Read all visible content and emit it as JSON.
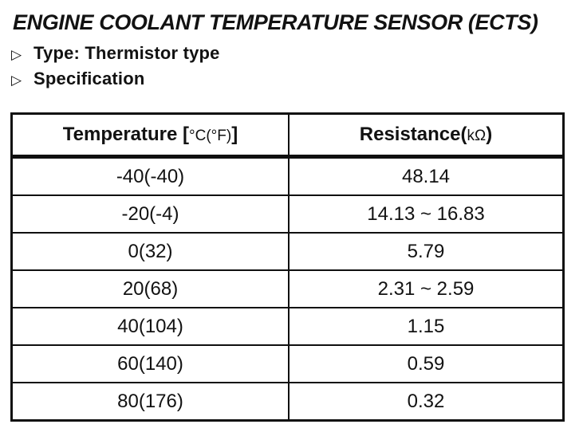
{
  "document": {
    "title": "ENGINE COOLANT TEMPERATURE SENSOR (ECTS)",
    "bullet_marker": "▷",
    "bullets": [
      "Type: Thermistor type",
      "Specification"
    ]
  },
  "table": {
    "header": {
      "temperature": {
        "prefix": "Temperature [",
        "unit": "°C(°F)",
        "suffix": "]"
      },
      "resistance": {
        "prefix": "Resistance(",
        "unit": "kΩ",
        "suffix": ")"
      }
    },
    "rows": [
      {
        "temperature": "-40(-40)",
        "resistance": "48.14"
      },
      {
        "temperature": "-20(-4)",
        "resistance": "14.13 ~ 16.83"
      },
      {
        "temperature": "0(32)",
        "resistance": "5.79"
      },
      {
        "temperature": "20(68)",
        "resistance": "2.31 ~ 2.59"
      },
      {
        "temperature": "40(104)",
        "resistance": "1.15"
      },
      {
        "temperature": "60(140)",
        "resistance": "0.59"
      },
      {
        "temperature": "80(176)",
        "resistance": "0.32"
      }
    ]
  },
  "colors": {
    "ink": "#121212",
    "paper": "#ffffff"
  }
}
